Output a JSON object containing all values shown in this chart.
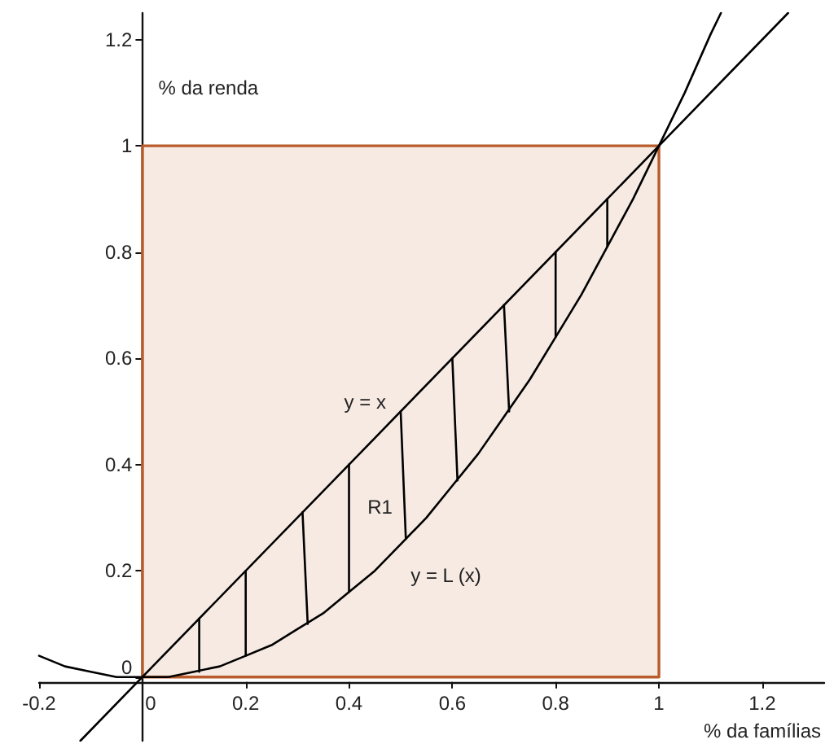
{
  "chart_data": {
    "type": "line",
    "xlabel": "% da famílias",
    "ylabel": "% da renda",
    "xlim": [
      -0.2,
      1.32
    ],
    "ylim": [
      -0.12,
      1.25
    ],
    "xticks": [
      -0.2,
      0,
      0.2,
      0.4,
      0.6,
      0.8,
      1,
      1.2
    ],
    "yticks": [
      0,
      0.2,
      0.4,
      0.6,
      0.8,
      1,
      1.2
    ],
    "grid": false,
    "marker": "none",
    "series": [
      {
        "type": "area",
        "color": "#b95b2a",
        "x": [
          0,
          0,
          1,
          1,
          0
        ],
        "values": [
          0,
          1,
          1,
          0,
          0
        ]
      },
      {
        "type": "line",
        "name": "y = x",
        "color": "#000000",
        "x": [
          -0.12,
          0,
          0.45,
          1,
          1.25
        ],
        "values": [
          -0.12,
          0,
          0.45,
          1,
          1.25
        ]
      },
      {
        "type": "line",
        "name": "y = L (x)",
        "color": "#000000",
        "x": [
          -0.2,
          -0.15,
          -0.1,
          -0.05,
          0,
          0.05,
          0.1,
          0.15,
          0.2,
          0.25,
          0.3,
          0.35,
          0.4,
          0.45,
          0.5,
          0.55,
          0.6,
          0.65,
          0.7,
          0.75,
          0.8,
          0.85,
          0.9,
          0.95,
          1,
          1.05,
          1.1,
          1.12
        ],
        "values": [
          0.04,
          0.02,
          0.01,
          0,
          0,
          0,
          0.01,
          0.02,
          0.04,
          0.06,
          0.09,
          0.12,
          0.16,
          0.2,
          0.25,
          0.3,
          0.36,
          0.42,
          0.49,
          0.56,
          0.64,
          0.72,
          0.81,
          0.9,
          1,
          1.1,
          1.21,
          1.25
        ]
      },
      {
        "type": "line",
        "name": "R1",
        "color": "#000000",
        "x": [
          0.11,
          0.11,
          null,
          0.2,
          0.2,
          null,
          0.31,
          0.32,
          null,
          0.4,
          0.4,
          null,
          0.5,
          0.51,
          null,
          0.6,
          0.61,
          null,
          0.7,
          0.71,
          null,
          0.8,
          0.8,
          null,
          0.9,
          0.9
        ],
        "values": [
          0.11,
          0.01,
          null,
          0.2,
          0.04,
          null,
          0.31,
          0.1,
          null,
          0.4,
          0.16,
          null,
          0.5,
          0.26,
          null,
          0.6,
          0.37,
          null,
          0.7,
          0.5,
          null,
          0.8,
          0.64,
          null,
          0.9,
          0.81
        ]
      }
    ]
  }
}
